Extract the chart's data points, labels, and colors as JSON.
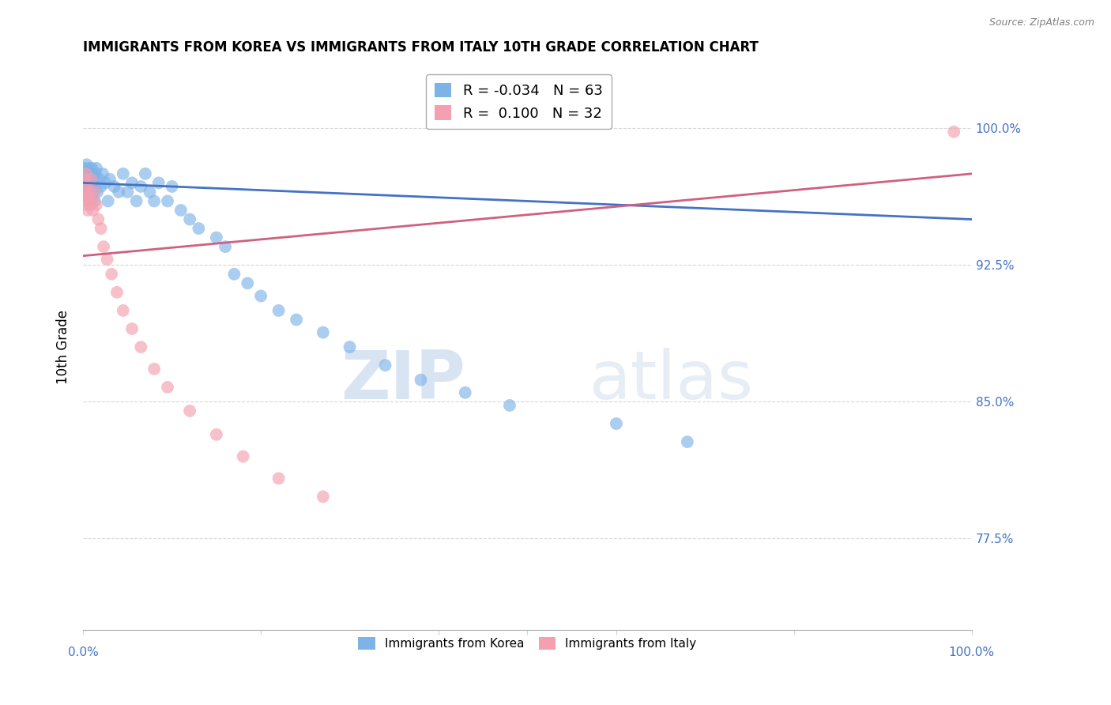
{
  "title": "IMMIGRANTS FROM KOREA VS IMMIGRANTS FROM ITALY 10TH GRADE CORRELATION CHART",
  "source": "Source: ZipAtlas.com",
  "ylabel": "10th Grade",
  "xlim": [
    0.0,
    1.0
  ],
  "ylim": [
    0.725,
    1.035
  ],
  "yticks": [
    0.775,
    0.85,
    0.925,
    1.0
  ],
  "ytick_labels": [
    "77.5%",
    "85.0%",
    "92.5%",
    "100.0%"
  ],
  "korea_R": -0.034,
  "korea_N": 63,
  "italy_R": 0.1,
  "italy_N": 32,
  "korea_color": "#7EB3E8",
  "italy_color": "#F4A0B0",
  "korea_line_color": "#4472C4",
  "italy_line_color": "#D06080",
  "watermark_zip": "ZIP",
  "watermark_atlas": "atlas",
  "legend_korea_label": "Immigrants from Korea",
  "legend_italy_label": "Immigrants from Italy",
  "korea_x": [
    0.001,
    0.002,
    0.002,
    0.003,
    0.003,
    0.004,
    0.004,
    0.005,
    0.005,
    0.006,
    0.006,
    0.007,
    0.007,
    0.008,
    0.008,
    0.009,
    0.009,
    0.01,
    0.01,
    0.011,
    0.012,
    0.013,
    0.013,
    0.014,
    0.015,
    0.016,
    0.018,
    0.02,
    0.022,
    0.025,
    0.028,
    0.03,
    0.035,
    0.04,
    0.045,
    0.05,
    0.055,
    0.06,
    0.065,
    0.07,
    0.075,
    0.08,
    0.085,
    0.095,
    0.1,
    0.11,
    0.12,
    0.13,
    0.15,
    0.16,
    0.17,
    0.185,
    0.2,
    0.22,
    0.24,
    0.27,
    0.3,
    0.34,
    0.38,
    0.43,
    0.48,
    0.6,
    0.68
  ],
  "korea_y": [
    0.975,
    0.97,
    0.978,
    0.965,
    0.972,
    0.968,
    0.98,
    0.962,
    0.975,
    0.97,
    0.968,
    0.965,
    0.978,
    0.972,
    0.96,
    0.975,
    0.968,
    0.97,
    0.978,
    0.965,
    0.972,
    0.968,
    0.96,
    0.975,
    0.978,
    0.965,
    0.972,
    0.968,
    0.975,
    0.97,
    0.96,
    0.972,
    0.968,
    0.965,
    0.975,
    0.965,
    0.97,
    0.96,
    0.968,
    0.975,
    0.965,
    0.96,
    0.97,
    0.96,
    0.968,
    0.955,
    0.95,
    0.945,
    0.94,
    0.935,
    0.92,
    0.915,
    0.908,
    0.9,
    0.895,
    0.888,
    0.88,
    0.87,
    0.862,
    0.855,
    0.848,
    0.838,
    0.828
  ],
  "italy_x": [
    0.001,
    0.002,
    0.003,
    0.003,
    0.004,
    0.004,
    0.005,
    0.006,
    0.007,
    0.008,
    0.009,
    0.01,
    0.011,
    0.013,
    0.015,
    0.017,
    0.02,
    0.023,
    0.027,
    0.032,
    0.038,
    0.045,
    0.055,
    0.065,
    0.08,
    0.095,
    0.12,
    0.15,
    0.18,
    0.22,
    0.27,
    0.98
  ],
  "italy_y": [
    0.965,
    0.972,
    0.958,
    0.975,
    0.96,
    0.968,
    0.955,
    0.962,
    0.965,
    0.958,
    0.972,
    0.96,
    0.955,
    0.965,
    0.958,
    0.95,
    0.945,
    0.935,
    0.928,
    0.92,
    0.91,
    0.9,
    0.89,
    0.88,
    0.868,
    0.858,
    0.845,
    0.832,
    0.82,
    0.808,
    0.798,
    0.998
  ],
  "korea_line_x0": 0.0,
  "korea_line_x1": 1.0,
  "korea_line_y0": 0.97,
  "korea_line_y1": 0.95,
  "italy_line_x0": 0.0,
  "italy_line_x1": 1.0,
  "italy_line_y0": 0.93,
  "italy_line_y1": 0.975
}
